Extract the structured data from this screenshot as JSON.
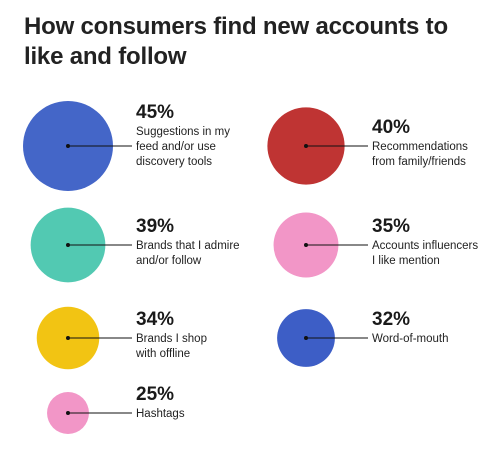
{
  "chart_data": {
    "type": "bubble",
    "title": "How consumers find new accounts to like and follow",
    "items": [
      {
        "pct_label": "45%",
        "value": 45,
        "label_lines": [
          "Suggestions in my",
          "feed and/or use",
          "discovery tools"
        ],
        "color": "#4466C8"
      },
      {
        "pct_label": "40%",
        "value": 40,
        "label_lines": [
          "Recommendations",
          "from family/friends"
        ],
        "color": "#BF3433"
      },
      {
        "pct_label": "39%",
        "value": 39,
        "label_lines": [
          "Brands that I admire",
          "and/or follow"
        ],
        "color": "#52C9B2"
      },
      {
        "pct_label": "35%",
        "value": 35,
        "label_lines": [
          "Accounts influencers",
          "I like mention"
        ],
        "color": "#F296C7"
      },
      {
        "pct_label": "34%",
        "value": 34,
        "label_lines": [
          "Brands I shop",
          "with offline"
        ],
        "color": "#F2C413"
      },
      {
        "pct_label": "32%",
        "value": 32,
        "label_lines": [
          "Word-of-mouth"
        ],
        "color": "#3D5EC6"
      },
      {
        "pct_label": "25%",
        "value": 25,
        "label_lines": [
          "Hashtags"
        ],
        "color": "#F296C7"
      }
    ]
  }
}
